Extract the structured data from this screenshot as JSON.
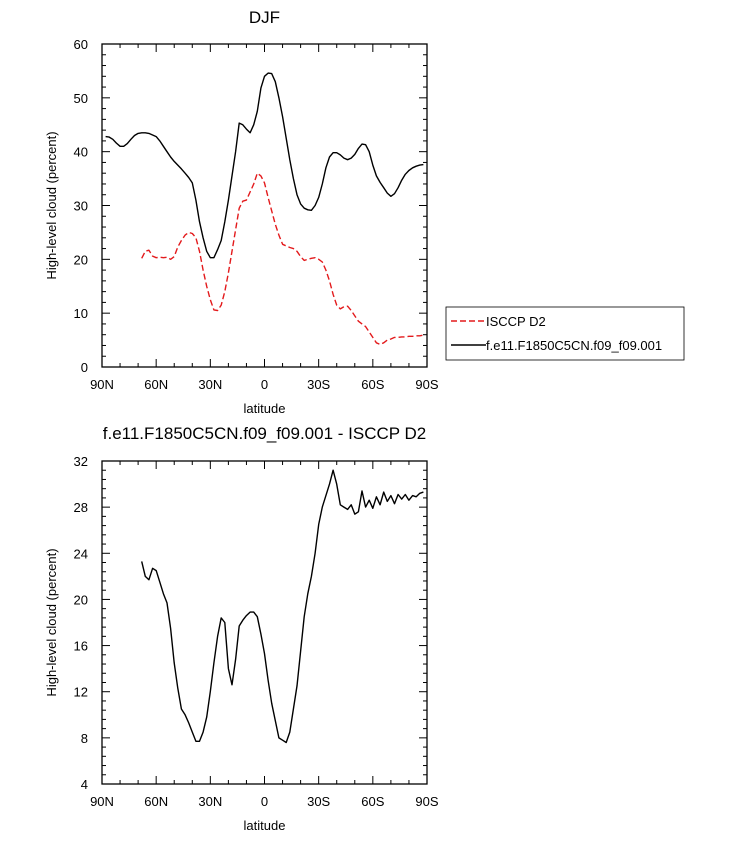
{
  "chart_data": [
    {
      "type": "line",
      "title": "DJF",
      "xlabel": "latitude",
      "ylabel": "High-level cloud (percent)",
      "xlim": [
        90,
        -90
      ],
      "ylim": [
        0,
        60
      ],
      "x_ticks": [
        90,
        60,
        30,
        0,
        -30,
        -60,
        -90
      ],
      "x_tick_labels": [
        "90N",
        "60N",
        "30N",
        "0",
        "30S",
        "60S",
        "90S"
      ],
      "y_ticks": [
        0,
        10,
        20,
        30,
        40,
        50,
        60
      ],
      "y_tick_labels": [
        "0",
        "10",
        "20",
        "30",
        "40",
        "50",
        "60"
      ],
      "grid": false,
      "legend_position": "right",
      "series": [
        {
          "name": "ISCCP D2",
          "color": "#e31a1c",
          "dash": "dashed",
          "x": [
            68,
            66,
            64,
            62,
            60,
            58,
            56,
            54,
            52,
            50,
            48,
            46,
            44,
            42,
            40,
            38,
            36,
            34,
            32,
            30,
            28,
            26,
            24,
            22,
            20,
            18,
            16,
            14,
            12,
            10,
            8,
            6,
            4,
            2,
            0,
            -2,
            -4,
            -6,
            -8,
            -10,
            -12,
            -14,
            -16,
            -18,
            -20,
            -22,
            -24,
            -26,
            -28,
            -30,
            -32,
            -34,
            -36,
            -38,
            -40,
            -42,
            -44,
            -46,
            -48,
            -50,
            -52,
            -54,
            -56,
            -58,
            -60,
            -62,
            -64,
            -66,
            -68,
            -70,
            -72,
            -74,
            -76,
            -78,
            -80,
            -82,
            -84,
            -86,
            -88
          ],
          "y": [
            20.2,
            21.5,
            21.7,
            20.6,
            20.3,
            20.4,
            20.3,
            20.4,
            20.0,
            20.5,
            22.3,
            23.5,
            24.5,
            25.0,
            24.8,
            24.0,
            21.5,
            18.0,
            15.0,
            12.5,
            10.6,
            10.5,
            11.5,
            14.0,
            17.5,
            21.5,
            25.5,
            29.5,
            30.8,
            31.0,
            32.5,
            34.0,
            36.0,
            35.5,
            34.2,
            31.5,
            29.0,
            26.5,
            24.5,
            22.8,
            22.5,
            22.2,
            22.0,
            21.5,
            20.5,
            19.8,
            20.0,
            20.2,
            20.3,
            20.0,
            19.5,
            18.0,
            16.0,
            13.5,
            11.5,
            10.8,
            11.2,
            11.3,
            10.5,
            9.5,
            8.5,
            8.0,
            7.5,
            6.5,
            5.5,
            4.5,
            4.2,
            4.5,
            5.0,
            5.2,
            5.5,
            5.5,
            5.6,
            5.6,
            5.7,
            5.7,
            5.8,
            5.8,
            5.9
          ]
        },
        {
          "name": "f.e11.F1850C5CN.f09_f09.001",
          "color": "#000000",
          "dash": "solid",
          "x": [
            88,
            86,
            84,
            82,
            80,
            78,
            76,
            74,
            72,
            70,
            68,
            66,
            64,
            62,
            60,
            58,
            56,
            54,
            52,
            50,
            48,
            46,
            44,
            42,
            40,
            38,
            36,
            34,
            32,
            30,
            28,
            26,
            24,
            22,
            20,
            18,
            16,
            14,
            12,
            10,
            8,
            6,
            4,
            2,
            0,
            -2,
            -4,
            -6,
            -8,
            -10,
            -12,
            -14,
            -16,
            -18,
            -20,
            -22,
            -24,
            -26,
            -28,
            -30,
            -32,
            -34,
            -36,
            -38,
            -40,
            -42,
            -44,
            -46,
            -48,
            -50,
            -52,
            -54,
            -56,
            -58,
            -60,
            -62,
            -64,
            -66,
            -68,
            -70,
            -72,
            -74,
            -76,
            -78,
            -80,
            -82,
            -84,
            -86,
            -88
          ],
          "y": [
            42.8,
            42.7,
            42.3,
            41.6,
            41.0,
            41.0,
            41.5,
            42.3,
            43.0,
            43.4,
            43.5,
            43.5,
            43.4,
            43.1,
            42.8,
            42.0,
            41.0,
            40.0,
            39.0,
            38.2,
            37.5,
            36.8,
            36.0,
            35.2,
            34.2,
            31.0,
            27.0,
            24.0,
            21.5,
            20.3,
            20.3,
            21.8,
            23.5,
            27.0,
            31.0,
            35.5,
            40.0,
            45.3,
            45.0,
            44.2,
            43.5,
            45.0,
            47.5,
            51.8,
            54.0,
            54.6,
            54.5,
            53.0,
            50.0,
            46.5,
            42.5,
            38.5,
            35.0,
            32.0,
            30.3,
            29.5,
            29.2,
            29.1,
            30.0,
            31.5,
            34.0,
            37.0,
            39.0,
            39.8,
            39.8,
            39.4,
            38.8,
            38.5,
            38.8,
            39.5,
            40.6,
            41.4,
            41.3,
            40.0,
            37.5,
            35.5,
            34.3,
            33.3,
            32.3,
            31.7,
            32.2,
            33.3,
            34.7,
            35.8,
            36.5,
            37.0,
            37.3,
            37.5,
            37.6
          ]
        }
      ]
    },
    {
      "type": "line",
      "title": "f.e11.F1850C5CN.f09_f09.001 - ISCCP D2",
      "xlabel": "latitude",
      "ylabel": "High-level cloud (percent)",
      "xlim": [
        90,
        -90
      ],
      "ylim": [
        4,
        32
      ],
      "x_ticks": [
        90,
        60,
        30,
        0,
        -30,
        -60,
        -90
      ],
      "x_tick_labels": [
        "90N",
        "60N",
        "30N",
        "0",
        "30S",
        "60S",
        "90S"
      ],
      "y_ticks": [
        4,
        8,
        12,
        16,
        20,
        24,
        28,
        32
      ],
      "y_tick_labels": [
        "4",
        "8",
        "12",
        "16",
        "20",
        "24",
        "28",
        "32"
      ],
      "grid": false,
      "series": [
        {
          "color": "#000000",
          "dash": "solid",
          "x": [
            68,
            66,
            64,
            62,
            60,
            58,
            56,
            54,
            52,
            50,
            48,
            46,
            44,
            42,
            40,
            38,
            36,
            34,
            32,
            30,
            28,
            26,
            24,
            22,
            20,
            18,
            16,
            14,
            12,
            10,
            8,
            6,
            4,
            2,
            0,
            -2,
            -4,
            -6,
            -8,
            -10,
            -12,
            -14,
            -16,
            -18,
            -20,
            -22,
            -24,
            -26,
            -28,
            -30,
            -32,
            -34,
            -36,
            -38,
            -40,
            -42,
            -44,
            -46,
            -48,
            -50,
            -52,
            -54,
            -56,
            -58,
            -60,
            -62,
            -64,
            -66,
            -68,
            -70,
            -72,
            -74,
            -76,
            -78,
            -80,
            -82,
            -84,
            -86,
            -88
          ],
          "y": [
            23.3,
            22.0,
            21.7,
            22.7,
            22.5,
            21.5,
            20.5,
            19.7,
            17.5,
            14.5,
            12.3,
            10.5,
            10.0,
            9.3,
            8.5,
            7.7,
            7.7,
            8.5,
            9.8,
            12.0,
            14.5,
            16.8,
            18.4,
            18.0,
            14.0,
            12.6,
            14.8,
            17.7,
            18.2,
            18.6,
            18.9,
            18.9,
            18.5,
            17.0,
            15.3,
            13.0,
            11.0,
            9.5,
            8.0,
            7.8,
            7.6,
            8.5,
            10.5,
            12.5,
            15.5,
            18.5,
            20.5,
            22.0,
            24.0,
            26.5,
            28.0,
            29.0,
            30.0,
            31.2,
            30.0,
            28.2,
            28.0,
            27.8,
            28.2,
            27.4,
            27.6,
            29.4,
            28.0,
            28.6,
            27.9,
            28.9,
            28.2,
            29.3,
            28.5,
            29.0,
            28.3,
            29.1,
            28.7,
            29.1,
            28.6,
            29.0,
            28.9,
            29.2,
            29.3
          ]
        }
      ]
    }
  ]
}
